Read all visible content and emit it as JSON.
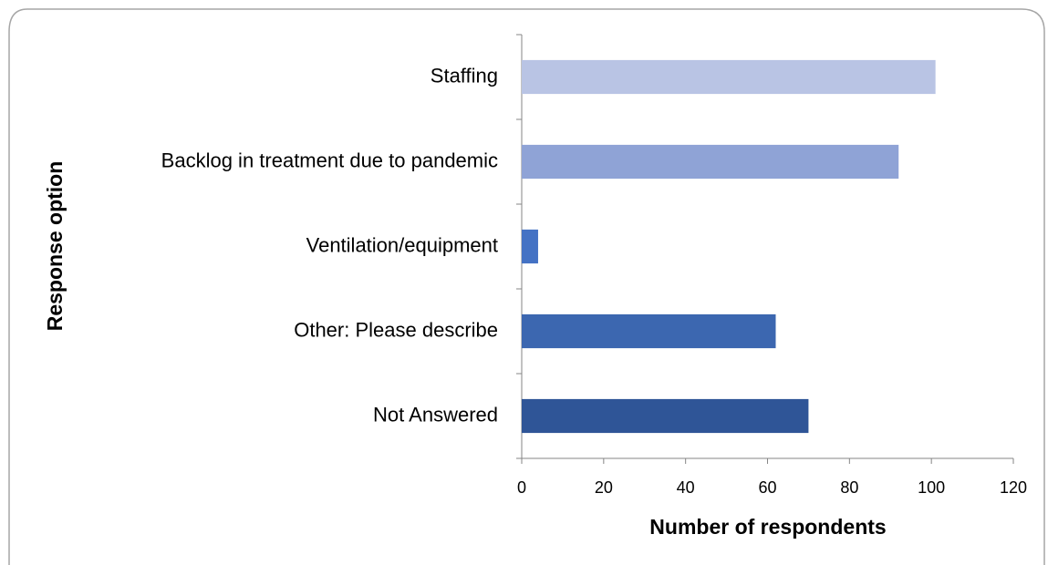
{
  "chart_data": {
    "type": "barh",
    "categories": [
      "Staffing",
      "Backlog in treatment due to pandemic",
      "Ventilation/equipment",
      "Other: Please describe",
      "Not Answered"
    ],
    "values": [
      101,
      92,
      4,
      62,
      70
    ],
    "colors": [
      "#b9c4e4",
      "#8fa3d6",
      "#4472c4",
      "#3c67b0",
      "#2f5597"
    ],
    "xlabel": "Number of respondents",
    "ylabel": "Response option",
    "xlim": [
      0,
      120
    ],
    "xticks": [
      0,
      20,
      40,
      60,
      80,
      100,
      120
    ],
    "grid": false
  }
}
